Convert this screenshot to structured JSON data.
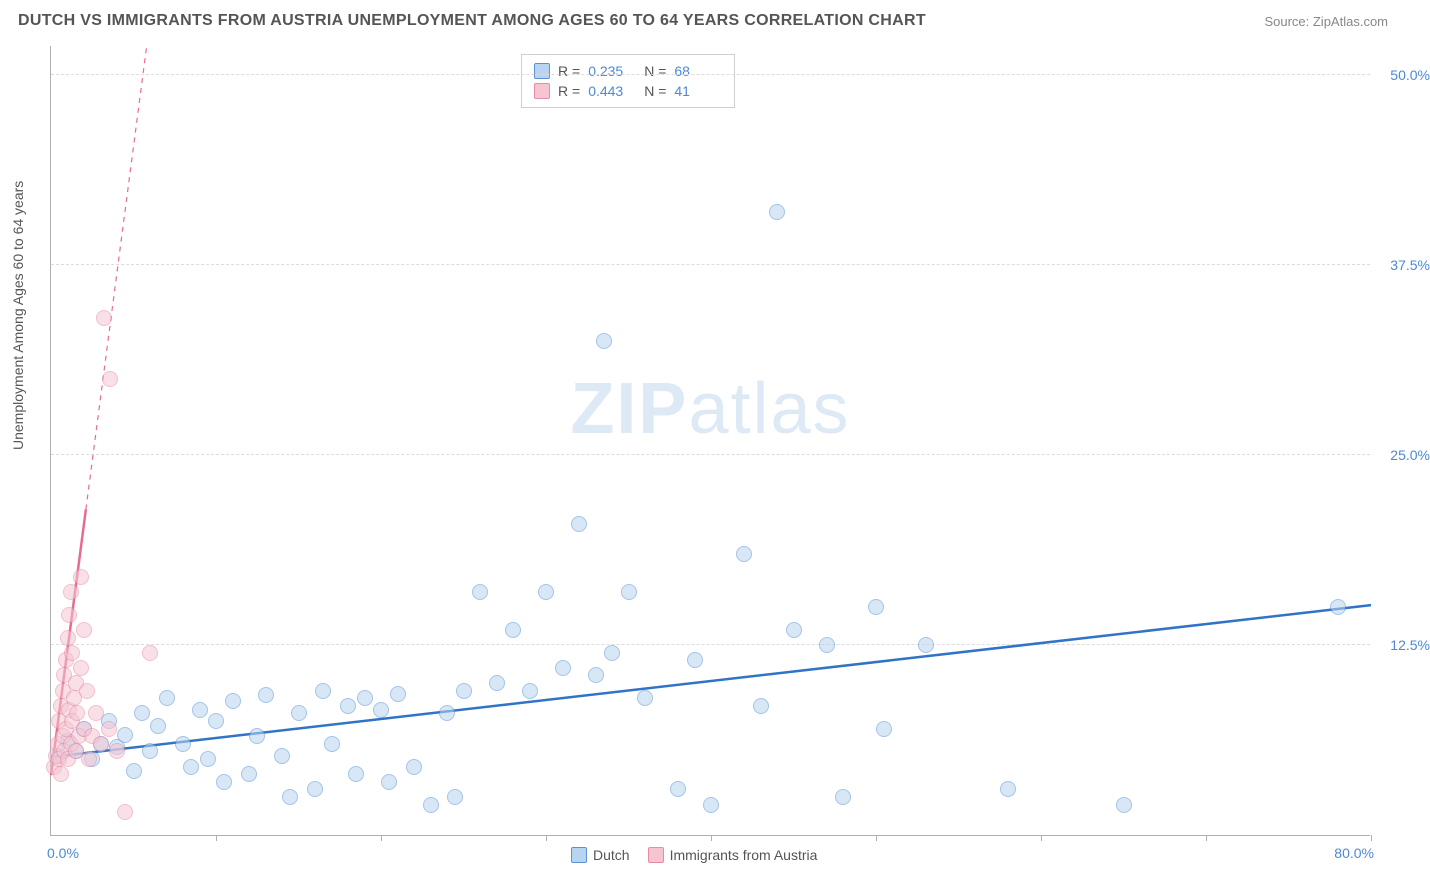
{
  "title": "DUTCH VS IMMIGRANTS FROM AUSTRIA UNEMPLOYMENT AMONG AGES 60 TO 64 YEARS CORRELATION CHART",
  "source": "Source: ZipAtlas.com",
  "ylabel": "Unemployment Among Ages 60 to 64 years",
  "watermark_bold": "ZIP",
  "watermark_light": "atlas",
  "chart": {
    "type": "scatter",
    "xlim": [
      0,
      80
    ],
    "ylim": [
      0,
      52
    ],
    "ytick_values": [
      12.5,
      25.0,
      37.5,
      50.0
    ],
    "ytick_labels": [
      "12.5%",
      "25.0%",
      "37.5%",
      "50.0%"
    ],
    "xtick_positions": [
      10,
      20,
      30,
      40,
      50,
      60,
      70,
      80
    ],
    "x_origin_label": "0.0%",
    "x_max_label": "80.0%",
    "background_color": "#ffffff",
    "grid_color": "#dcdcdc",
    "axis_color": "#b0b0b0",
    "label_color": "#555555",
    "tick_label_color": "#4a8ad8",
    "marker_radius": 8,
    "marker_opacity": 0.55,
    "series": [
      {
        "name": "Dutch",
        "fill": "#b8d4f0",
        "stroke": "#5b93d6",
        "trend_color": "#3173c7",
        "trend_width": 2.5,
        "trend_dash": "none",
        "R": "0.235",
        "N": "68",
        "trend": {
          "x1": 0,
          "y1": 5.2,
          "x2": 80,
          "y2": 15.2
        },
        "points": [
          [
            0.5,
            5.2
          ],
          [
            1,
            6.2
          ],
          [
            1.5,
            5.5
          ],
          [
            2,
            7.0
          ],
          [
            2.5,
            5.0
          ],
          [
            3,
            6.0
          ],
          [
            3.5,
            7.5
          ],
          [
            4,
            5.8
          ],
          [
            4.5,
            6.6
          ],
          [
            5,
            4.2
          ],
          [
            5.5,
            8.0
          ],
          [
            6,
            5.5
          ],
          [
            6.5,
            7.2
          ],
          [
            7,
            9.0
          ],
          [
            8,
            6.0
          ],
          [
            8.5,
            4.5
          ],
          [
            9,
            8.2
          ],
          [
            9.5,
            5.0
          ],
          [
            10,
            7.5
          ],
          [
            10.5,
            3.5
          ],
          [
            11,
            8.8
          ],
          [
            12,
            4.0
          ],
          [
            12.5,
            6.5
          ],
          [
            13,
            9.2
          ],
          [
            14,
            5.2
          ],
          [
            14.5,
            2.5
          ],
          [
            15,
            8.0
          ],
          [
            16,
            3.0
          ],
          [
            16.5,
            9.5
          ],
          [
            17,
            6.0
          ],
          [
            18,
            8.5
          ],
          [
            18.5,
            4.0
          ],
          [
            19,
            9.0
          ],
          [
            20,
            8.2
          ],
          [
            20.5,
            3.5
          ],
          [
            21,
            9.3
          ],
          [
            22,
            4.5
          ],
          [
            23,
            2.0
          ],
          [
            24,
            8.0
          ],
          [
            24.5,
            2.5
          ],
          [
            25,
            9.5
          ],
          [
            26,
            16.0
          ],
          [
            27,
            10.0
          ],
          [
            28,
            13.5
          ],
          [
            29,
            9.5
          ],
          [
            30,
            16.0
          ],
          [
            31,
            11.0
          ],
          [
            32,
            20.5
          ],
          [
            33,
            10.5
          ],
          [
            33.5,
            32.5
          ],
          [
            34,
            12.0
          ],
          [
            35,
            16.0
          ],
          [
            36,
            9.0
          ],
          [
            38,
            3.0
          ],
          [
            39,
            11.5
          ],
          [
            40,
            2.0
          ],
          [
            42,
            18.5
          ],
          [
            43,
            8.5
          ],
          [
            44,
            41.0
          ],
          [
            45,
            13.5
          ],
          [
            47,
            12.5
          ],
          [
            48,
            2.5
          ],
          [
            50,
            15.0
          ],
          [
            50.5,
            7.0
          ],
          [
            53,
            12.5
          ],
          [
            58,
            3.0
          ],
          [
            65,
            2.0
          ],
          [
            78,
            15.0
          ]
        ]
      },
      {
        "name": "Immigrants from Austria",
        "fill": "#f5c6d2",
        "stroke": "#e88ca6",
        "trend_color": "#e86b8f",
        "trend_width": 2.5,
        "trend_dash": "5,5",
        "R": "0.443",
        "N": "41",
        "trend": {
          "x1": 0,
          "y1": 4.0,
          "x2": 5.8,
          "y2": 52
        },
        "trend_solid_until_y": 21.5,
        "points": [
          [
            0.2,
            4.5
          ],
          [
            0.3,
            5.2
          ],
          [
            0.4,
            6.0
          ],
          [
            0.5,
            5.0
          ],
          [
            0.5,
            7.5
          ],
          [
            0.6,
            4.0
          ],
          [
            0.6,
            8.5
          ],
          [
            0.7,
            6.5
          ],
          [
            0.7,
            9.5
          ],
          [
            0.8,
            5.5
          ],
          [
            0.8,
            10.5
          ],
          [
            0.9,
            7.0
          ],
          [
            0.9,
            11.5
          ],
          [
            1.0,
            5.0
          ],
          [
            1.0,
            13.0
          ],
          [
            1.1,
            8.2
          ],
          [
            1.1,
            14.5
          ],
          [
            1.2,
            6.0
          ],
          [
            1.2,
            16.0
          ],
          [
            1.3,
            7.5
          ],
          [
            1.3,
            12.0
          ],
          [
            1.4,
            9.0
          ],
          [
            1.5,
            5.5
          ],
          [
            1.5,
            10.0
          ],
          [
            1.6,
            8.0
          ],
          [
            1.7,
            6.5
          ],
          [
            1.8,
            11.0
          ],
          [
            1.8,
            17.0
          ],
          [
            2.0,
            7.0
          ],
          [
            2.0,
            13.5
          ],
          [
            2.2,
            9.5
          ],
          [
            2.3,
            5.0
          ],
          [
            2.5,
            6.5
          ],
          [
            2.7,
            8.0
          ],
          [
            3.0,
            6.0
          ],
          [
            3.2,
            34.0
          ],
          [
            3.5,
            7.0
          ],
          [
            3.6,
            30.0
          ],
          [
            4.0,
            5.5
          ],
          [
            4.5,
            1.5
          ],
          [
            6.0,
            12.0
          ]
        ]
      }
    ]
  },
  "legend_bottom": {
    "items": [
      {
        "label": "Dutch",
        "fill": "#b8d4f0",
        "stroke": "#5b93d6"
      },
      {
        "label": "Immigrants from Austria",
        "fill": "#f5c6d2",
        "stroke": "#e88ca6"
      }
    ]
  }
}
